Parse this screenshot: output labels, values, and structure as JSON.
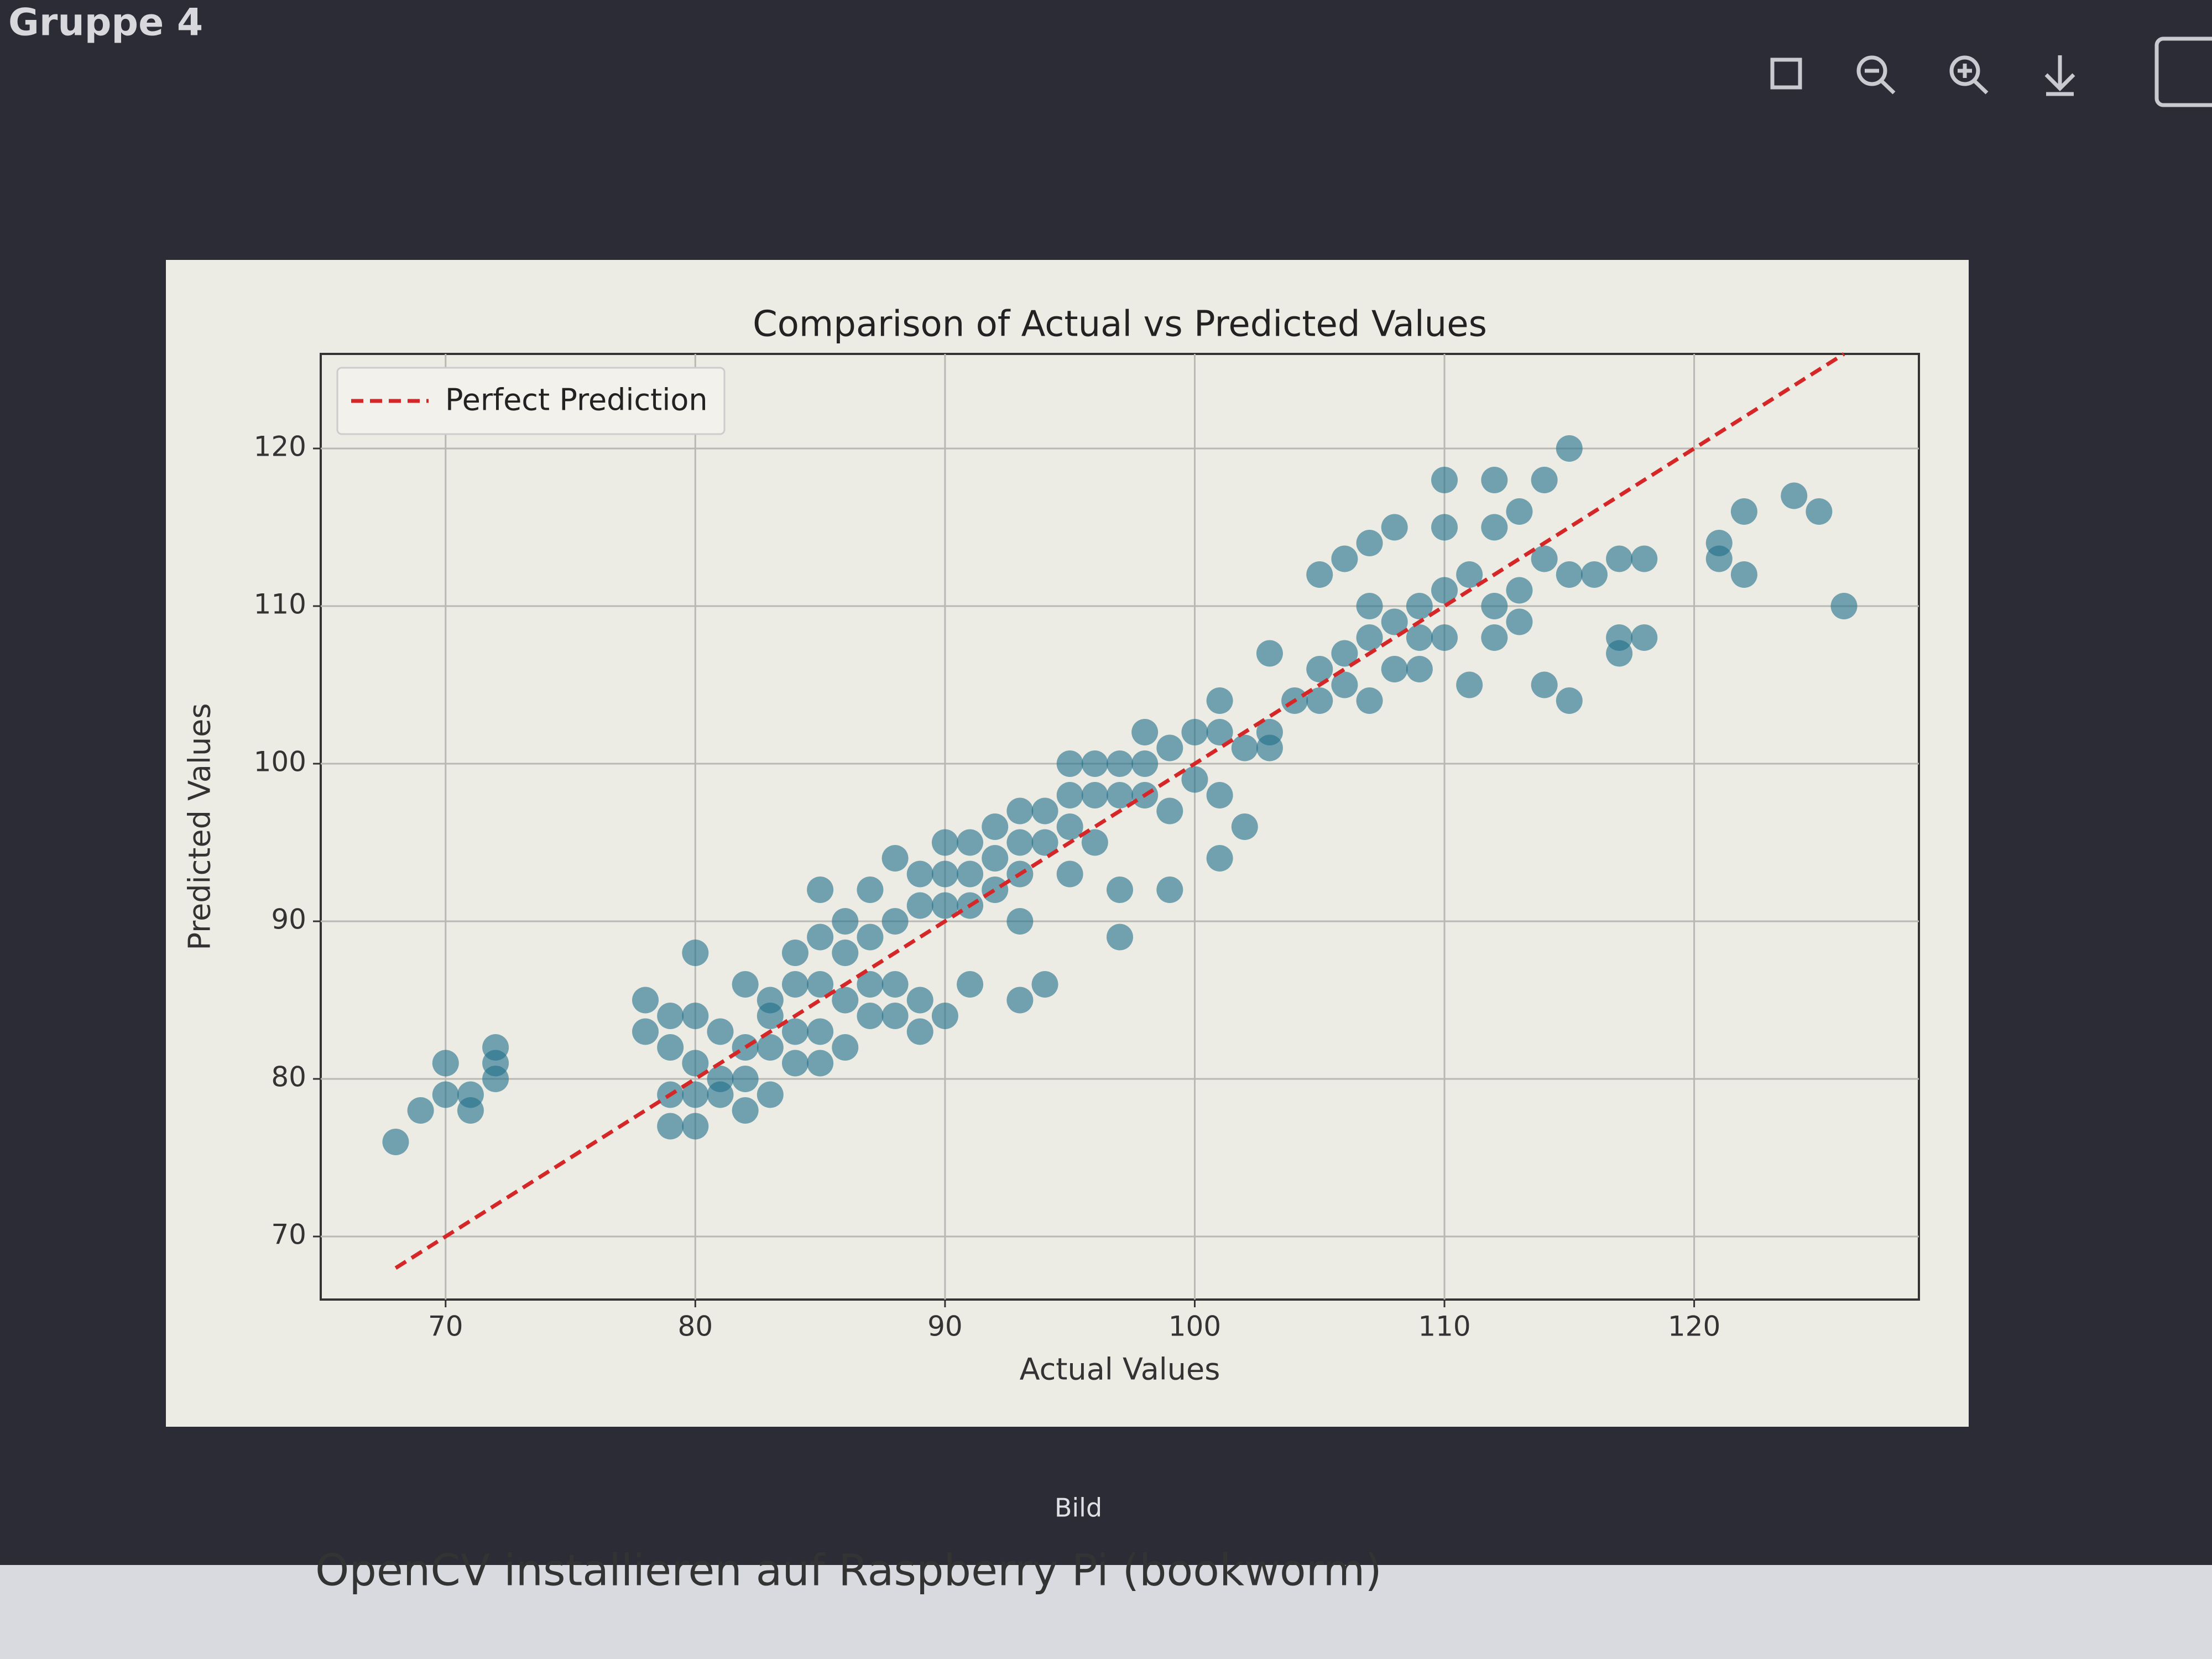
{
  "header": {
    "title": "Gruppe 4"
  },
  "viewer": {
    "caption": "Bild"
  },
  "background": {
    "article_title": "OpenCV installieren auf Raspberry Pi (bookworm)"
  },
  "chart_data": {
    "type": "scatter",
    "title": "Comparison of Actual vs Predicted Values",
    "x_label": "Actual Values",
    "y_label": "Predicted Values",
    "xlim": [
      65,
      129
    ],
    "ylim": [
      66,
      126
    ],
    "xticks": [
      70,
      80,
      90,
      100,
      110,
      120
    ],
    "yticks": [
      70,
      80,
      90,
      100,
      110,
      120
    ],
    "grid": true,
    "legend": "upper left",
    "scatter": {
      "color": "#1f6f8b",
      "x": [
        68,
        69,
        70,
        70,
        71,
        71,
        72,
        72,
        72,
        78,
        78,
        79,
        79,
        79,
        79,
        80,
        80,
        80,
        80,
        80,
        81,
        81,
        81,
        82,
        82,
        82,
        82,
        83,
        83,
        83,
        83,
        84,
        84,
        84,
        84,
        85,
        85,
        85,
        85,
        85,
        86,
        86,
        86,
        86,
        87,
        87,
        87,
        87,
        88,
        88,
        88,
        88,
        89,
        89,
        89,
        89,
        90,
        90,
        90,
        90,
        91,
        91,
        91,
        91,
        92,
        92,
        92,
        93,
        93,
        93,
        93,
        93,
        94,
        94,
        94,
        95,
        95,
        95,
        95,
        96,
        96,
        96,
        97,
        97,
        97,
        97,
        98,
        98,
        98,
        99,
        99,
        99,
        100,
        100,
        101,
        101,
        101,
        101,
        102,
        102,
        103,
        103,
        103,
        104,
        105,
        105,
        105,
        106,
        106,
        106,
        107,
        107,
        107,
        107,
        108,
        108,
        108,
        109,
        109,
        109,
        110,
        110,
        110,
        110,
        111,
        111,
        112,
        112,
        112,
        112,
        113,
        113,
        113,
        114,
        114,
        114,
        115,
        115,
        115,
        116,
        117,
        117,
        117,
        118,
        118,
        121,
        121,
        122,
        122,
        124,
        125,
        126
      ],
      "y": [
        76,
        78,
        79,
        81,
        78,
        79,
        80,
        81,
        82,
        85,
        83,
        84,
        82,
        79,
        77,
        88,
        84,
        81,
        79,
        77,
        80,
        83,
        79,
        86,
        82,
        78,
        80,
        85,
        82,
        84,
        79,
        88,
        86,
        83,
        81,
        92,
        89,
        86,
        83,
        81,
        90,
        88,
        85,
        82,
        92,
        89,
        86,
        84,
        94,
        90,
        86,
        84,
        93,
        91,
        85,
        83,
        95,
        93,
        91,
        84,
        95,
        93,
        91,
        86,
        96,
        94,
        92,
        97,
        95,
        93,
        90,
        85,
        97,
        95,
        86,
        100,
        98,
        96,
        93,
        100,
        98,
        95,
        100,
        98,
        92,
        89,
        102,
        100,
        98,
        101,
        97,
        92,
        102,
        99,
        104,
        102,
        98,
        94,
        101,
        96,
        107,
        102,
        101,
        104,
        112,
        106,
        104,
        113,
        107,
        105,
        114,
        110,
        108,
        104,
        115,
        109,
        106,
        110,
        108,
        106,
        118,
        115,
        111,
        108,
        112,
        105,
        118,
        115,
        110,
        108,
        116,
        111,
        109,
        118,
        113,
        105,
        120,
        112,
        104,
        112,
        113,
        108,
        107,
        113,
        108,
        114,
        113,
        112,
        116,
        117,
        116,
        110
      ]
    },
    "perfect_line": {
      "name": "Perfect Prediction",
      "color": "#d62728",
      "x": [
        68,
        126
      ],
      "values": [
        68,
        126
      ]
    }
  }
}
